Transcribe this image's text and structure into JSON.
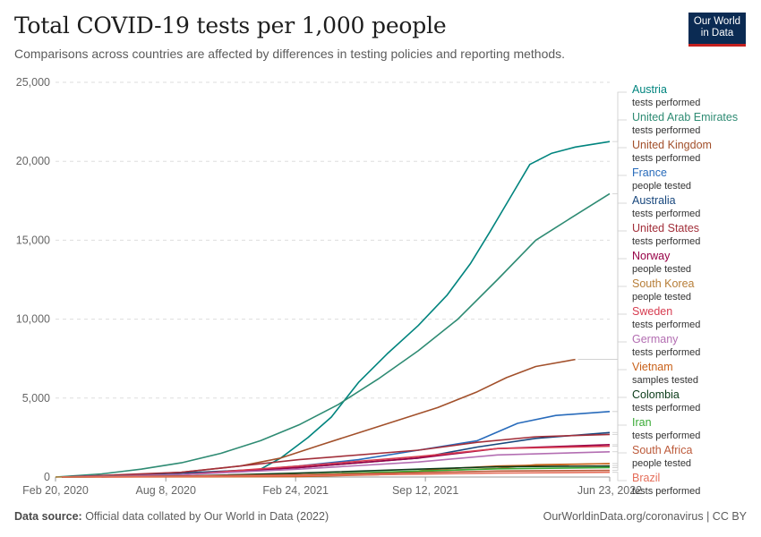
{
  "header": {
    "title": "Total COVID-19 tests per 1,000 people",
    "subtitle": "Comparisons across countries are affected by differences in testing policies and reporting methods.",
    "logo_line1": "Our World",
    "logo_line2": "in Data"
  },
  "footer": {
    "source_label": "Data source:",
    "source_text": " Official data collated by Our World in Data (2022)",
    "right_text": "OurWorldinData.org/coronavirus | CC BY"
  },
  "chart_data": {
    "type": "line",
    "title": "Total COVID-19 tests per 1,000 people",
    "ylim": [
      0,
      25000
    ],
    "yticks": [
      0,
      5000,
      10000,
      15000,
      20000,
      25000
    ],
    "ytick_labels": [
      "0",
      "5,000",
      "10,000",
      "15,000",
      "20,000",
      "25,000"
    ],
    "xlim": [
      "2020-02-20",
      "2022-06-23"
    ],
    "xticks": [
      "2020-02-20",
      "2020-08-08",
      "2021-02-24",
      "2021-09-12",
      "2022-06-23"
    ],
    "xtick_labels": [
      "Feb 20, 2020",
      "Aug 8, 2020",
      "Feb 24, 2021",
      "Sep 12, 2021",
      "Jun 23, 2022"
    ],
    "grid": "horizontal dashed",
    "legend_placement": "right",
    "series": [
      {
        "name": "Austria",
        "metric": "tests performed",
        "color": "#00847e",
        "points": [
          [
            "2021-01-01",
            500
          ],
          [
            "2021-02-01",
            1200
          ],
          [
            "2021-03-15",
            2500
          ],
          [
            "2021-04-20",
            3800
          ],
          [
            "2021-06-01",
            6000
          ],
          [
            "2021-07-15",
            7800
          ],
          [
            "2021-09-01",
            9600
          ],
          [
            "2021-10-15",
            11500
          ],
          [
            "2021-11-20",
            13500
          ],
          [
            "2021-12-20",
            15500
          ],
          [
            "2022-01-25",
            18000
          ],
          [
            "2022-02-20",
            19800
          ],
          [
            "2022-03-25",
            20500
          ],
          [
            "2022-05-01",
            20900
          ],
          [
            "2022-06-23",
            21250
          ]
        ]
      },
      {
        "name": "United Arab Emirates",
        "metric": "tests performed",
        "color": "#2e8b73",
        "points": [
          [
            "2020-02-20",
            0
          ],
          [
            "2020-05-01",
            200
          ],
          [
            "2020-07-01",
            500
          ],
          [
            "2020-09-01",
            900
          ],
          [
            "2020-11-01",
            1500
          ],
          [
            "2021-01-01",
            2300
          ],
          [
            "2021-03-01",
            3300
          ],
          [
            "2021-05-01",
            4600
          ],
          [
            "2021-07-01",
            6200
          ],
          [
            "2021-09-01",
            8000
          ],
          [
            "2021-11-01",
            10000
          ],
          [
            "2022-01-01",
            12500
          ],
          [
            "2022-03-01",
            15000
          ],
          [
            "2022-04-20",
            16300
          ],
          [
            "2022-06-23",
            17950
          ]
        ]
      },
      {
        "name": "United Kingdom",
        "metric": "tests performed",
        "color": "#a2502b",
        "points": [
          [
            "2020-03-01",
            0
          ],
          [
            "2020-06-01",
            100
          ],
          [
            "2020-09-01",
            300
          ],
          [
            "2020-12-01",
            700
          ],
          [
            "2021-02-01",
            1200
          ],
          [
            "2021-04-01",
            2000
          ],
          [
            "2021-06-01",
            2800
          ],
          [
            "2021-08-01",
            3600
          ],
          [
            "2021-10-01",
            4400
          ],
          [
            "2021-12-01",
            5400
          ],
          [
            "2022-01-15",
            6300
          ],
          [
            "2022-03-01",
            7000
          ],
          [
            "2022-05-01",
            7450
          ]
        ]
      },
      {
        "name": "France",
        "metric": "people tested",
        "color": "#286bbb",
        "points": [
          [
            "2020-05-01",
            0
          ],
          [
            "2020-09-01",
            150
          ],
          [
            "2020-12-01",
            400
          ],
          [
            "2021-03-01",
            700
          ],
          [
            "2021-06-01",
            1100
          ],
          [
            "2021-09-01",
            1700
          ],
          [
            "2021-12-01",
            2300
          ],
          [
            "2022-02-01",
            3400
          ],
          [
            "2022-04-01",
            3900
          ],
          [
            "2022-06-23",
            4150
          ]
        ]
      },
      {
        "name": "Australia",
        "metric": "tests performed",
        "color": "#18477d",
        "points": [
          [
            "2020-03-01",
            0
          ],
          [
            "2020-09-01",
            250
          ],
          [
            "2021-03-01",
            600
          ],
          [
            "2021-09-01",
            1200
          ],
          [
            "2021-12-01",
            1900
          ],
          [
            "2022-03-01",
            2450
          ],
          [
            "2022-06-23",
            2820
          ]
        ]
      },
      {
        "name": "United States",
        "metric": "tests performed",
        "color": "#a22f3a",
        "points": [
          [
            "2020-03-01",
            0
          ],
          [
            "2020-09-01",
            300
          ],
          [
            "2021-03-01",
            1100
          ],
          [
            "2021-09-01",
            1700
          ],
          [
            "2021-12-01",
            2200
          ],
          [
            "2022-03-01",
            2550
          ],
          [
            "2022-06-23",
            2700
          ]
        ]
      },
      {
        "name": "Norway",
        "metric": "people tested",
        "color": "#970046",
        "points": [
          [
            "2020-03-01",
            0
          ],
          [
            "2020-09-01",
            150
          ],
          [
            "2021-03-01",
            600
          ],
          [
            "2021-09-01",
            1200
          ],
          [
            "2022-01-01",
            1800
          ],
          [
            "2022-06-23",
            2050
          ]
        ]
      },
      {
        "name": "South Korea",
        "metric": "people tested",
        "color": "#b77e38",
        "points": [
          [
            "2020-02-20",
            0
          ],
          [
            "2020-09-01",
            40
          ],
          [
            "2021-03-01",
            150
          ],
          [
            "2021-09-01",
            350
          ],
          [
            "2022-01-01",
            550
          ],
          [
            "2022-03-01",
            780
          ],
          [
            "2022-06-23",
            850
          ]
        ]
      },
      {
        "name": "Sweden",
        "metric": "tests performed",
        "color": "#d73c50",
        "points": [
          [
            "2020-03-01",
            0
          ],
          [
            "2020-09-01",
            150
          ],
          [
            "2021-03-01",
            700
          ],
          [
            "2021-09-01",
            1300
          ],
          [
            "2022-01-01",
            1800
          ],
          [
            "2022-06-23",
            1950
          ]
        ]
      },
      {
        "name": "Germany",
        "metric": "tests performed",
        "color": "#b36eb2",
        "points": [
          [
            "2020-03-01",
            0
          ],
          [
            "2020-09-01",
            150
          ],
          [
            "2021-03-01",
            500
          ],
          [
            "2021-09-01",
            950
          ],
          [
            "2022-01-01",
            1400
          ],
          [
            "2022-06-23",
            1600
          ]
        ]
      },
      {
        "name": "Vietnam",
        "metric": "samples tested",
        "color": "#c9611a",
        "points": [
          [
            "2020-03-01",
            0
          ],
          [
            "2021-03-01",
            30
          ],
          [
            "2021-07-01",
            150
          ],
          [
            "2021-10-01",
            500
          ],
          [
            "2022-01-01",
            700
          ],
          [
            "2022-06-23",
            850
          ]
        ]
      },
      {
        "name": "Colombia",
        "metric": "tests performed",
        "color": "#0a3b18",
        "points": [
          [
            "2020-03-01",
            0
          ],
          [
            "2020-09-01",
            50
          ],
          [
            "2021-03-01",
            250
          ],
          [
            "2021-09-01",
            500
          ],
          [
            "2022-01-01",
            650
          ],
          [
            "2022-06-23",
            700
          ]
        ]
      },
      {
        "name": "Iran",
        "metric": "tests performed",
        "color": "#38aa34",
        "points": [
          [
            "2020-03-01",
            0
          ],
          [
            "2020-09-01",
            50
          ],
          [
            "2021-03-01",
            150
          ],
          [
            "2021-09-01",
            380
          ],
          [
            "2022-01-01",
            520
          ],
          [
            "2022-06-23",
            600
          ]
        ]
      },
      {
        "name": "South Africa",
        "metric": "people tested",
        "color": "#bc5a3a",
        "points": [
          [
            "2020-03-01",
            0
          ],
          [
            "2020-09-01",
            60
          ],
          [
            "2021-03-01",
            150
          ],
          [
            "2021-09-01",
            280
          ],
          [
            "2022-01-01",
            380
          ],
          [
            "2022-06-23",
            420
          ]
        ]
      },
      {
        "name": "Brazil",
        "metric": "tests performed",
        "color": "#e56e5a",
        "points": [
          [
            "2020-03-01",
            0
          ],
          [
            "2020-09-01",
            30
          ],
          [
            "2021-03-01",
            90
          ],
          [
            "2021-09-01",
            180
          ],
          [
            "2022-01-01",
            250
          ],
          [
            "2022-06-23",
            300
          ]
        ]
      }
    ]
  }
}
